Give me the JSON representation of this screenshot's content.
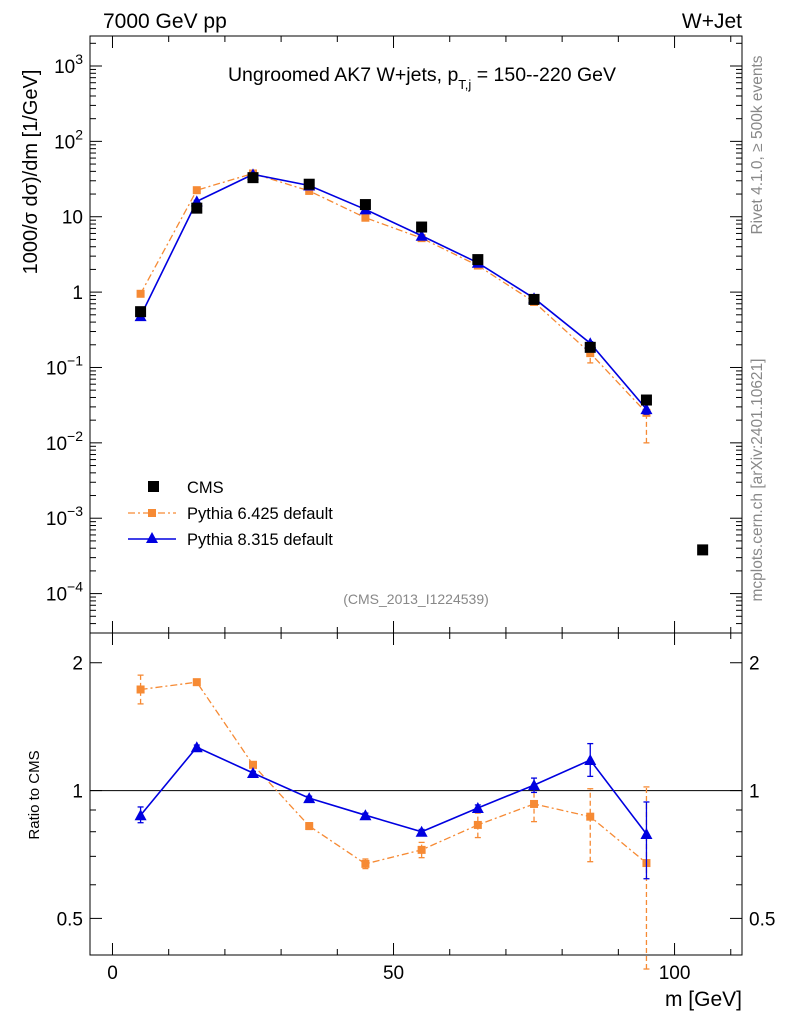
{
  "header": {
    "left": "7000 GeV pp",
    "right": "W+Jet"
  },
  "side_labels": {
    "rivet": "Rivet 4.1.0, ≥ 500k events",
    "mcplots": "mcplots.cern.ch [arXiv:2401.10621]"
  },
  "colors": {
    "cms": "#000000",
    "pythia6": "#f68a34",
    "pythia8": "#0000e0"
  },
  "chart_data": [
    {
      "type": "scatter",
      "panel": "main",
      "title_main": "Ungroomed AK7 W+jets, p",
      "title_sub": "T,j",
      "title_rest": " = 150--220 GeV",
      "ylabel": "1000/σ  dσ)/dm [1/GeV]",
      "yscale": "log",
      "ylim": [
        3e-05,
        2500
      ],
      "xlim": [
        -4,
        112
      ],
      "yticks": [
        {
          "value": 0.0001,
          "base": "10",
          "exp": "−4"
        },
        {
          "value": 0.001,
          "base": "10",
          "exp": "−3"
        },
        {
          "value": 0.01,
          "base": "10",
          "exp": "−2"
        },
        {
          "value": 0.1,
          "base": "10",
          "exp": "−1"
        },
        {
          "value": 1,
          "base": "1",
          "exp": ""
        },
        {
          "value": 10,
          "base": "10",
          "exp": ""
        },
        {
          "value": 100,
          "base": "10",
          "exp": "2"
        },
        {
          "value": 1000,
          "base": "10",
          "exp": "3"
        }
      ],
      "watermark": "(CMS_2013_I1224539)",
      "legend": [
        {
          "key": "cms",
          "label": "CMS"
        },
        {
          "key": "pythia6",
          "label": "Pythia 6.425 default"
        },
        {
          "key": "pythia8",
          "label": "Pythia 8.315 default"
        }
      ],
      "series": [
        {
          "key": "cms",
          "name": "CMS",
          "marker": "square",
          "x": [
            5,
            15,
            25,
            35,
            45,
            55,
            65,
            75,
            85,
            95,
            105
          ],
          "y": [
            0.55,
            13,
            33,
            27,
            14.5,
            7.3,
            2.7,
            0.8,
            0.185,
            0.037,
            0.00038
          ]
        },
        {
          "key": "pythia6",
          "name": "Pythia 6.425 default",
          "marker": "square-small",
          "line": "dashdot",
          "x": [
            5,
            15,
            25,
            35,
            45,
            55,
            65,
            75,
            85,
            95
          ],
          "y": [
            0.95,
            22.5,
            37.5,
            22,
            9.7,
            5.2,
            2.25,
            0.74,
            0.155,
            0.025
          ],
          "yerr_low": [
            0.9,
            22,
            37,
            21.5,
            9.5,
            5.0,
            2.1,
            0.68,
            0.115,
            0.01
          ],
          "yerr_high": [
            1.0,
            23,
            38,
            22.5,
            9.9,
            5.4,
            2.4,
            0.8,
            0.19,
            0.04
          ]
        },
        {
          "key": "pythia8",
          "name": "Pythia 8.315 default",
          "marker": "triangle",
          "line": "solid",
          "x": [
            5,
            15,
            25,
            35,
            45,
            55,
            65,
            75,
            85,
            95
          ],
          "y": [
            0.48,
            16,
            36.5,
            26,
            12.5,
            5.6,
            2.45,
            0.83,
            0.21,
            0.028
          ],
          "yerr_low": [
            0.46,
            15.5,
            36,
            25.5,
            12.2,
            5.5,
            2.4,
            0.8,
            0.2,
            0.024
          ],
          "yerr_high": [
            0.5,
            16.5,
            37,
            26.5,
            12.8,
            5.7,
            2.5,
            0.86,
            0.22,
            0.032
          ]
        }
      ]
    },
    {
      "type": "scatter",
      "panel": "ratio",
      "ylabel": "Ratio to CMS",
      "xlabel": "m [GeV]",
      "yscale": "log",
      "ylim": [
        0.41,
        2.35
      ],
      "xlim": [
        -4,
        112
      ],
      "yticks": [
        {
          "value": 0.5,
          "label": "0.5"
        },
        {
          "value": 1,
          "label": "1"
        },
        {
          "value": 2,
          "label": "2"
        }
      ],
      "xticks": [
        {
          "value": 0,
          "label": "0"
        },
        {
          "value": 50,
          "label": "50"
        },
        {
          "value": 100,
          "label": "100"
        }
      ],
      "reference": 1,
      "series": [
        {
          "key": "pythia6",
          "name": "Pythia 6.425 default",
          "marker": "square-small",
          "line": "dashdot",
          "x": [
            5,
            15,
            25,
            35,
            45,
            55,
            65,
            75,
            85,
            95
          ],
          "y": [
            1.73,
            1.8,
            1.15,
            0.825,
            0.672,
            0.725,
            0.83,
            0.93,
            0.868,
            0.675
          ],
          "yerr_low": [
            1.6,
            1.78,
            1.13,
            0.81,
            0.655,
            0.695,
            0.775,
            0.845,
            0.68,
            0.38
          ],
          "yerr_high": [
            1.87,
            1.82,
            1.17,
            0.84,
            0.69,
            0.755,
            0.885,
            1.01,
            1.01,
            1.02
          ]
        },
        {
          "key": "pythia8",
          "name": "Pythia 8.315 default",
          "marker": "triangle",
          "line": "solid",
          "x": [
            5,
            15,
            25,
            35,
            45,
            55,
            65,
            75,
            85,
            95
          ],
          "y": [
            0.875,
            1.265,
            1.1,
            0.96,
            0.875,
            0.8,
            0.91,
            1.03,
            1.18,
            0.79
          ],
          "yerr_low": [
            0.84,
            1.25,
            1.09,
            0.95,
            0.865,
            0.79,
            0.895,
            0.99,
            1.08,
            0.62
          ],
          "yerr_high": [
            0.915,
            1.28,
            1.11,
            0.97,
            0.885,
            0.81,
            0.925,
            1.07,
            1.29,
            0.94
          ]
        }
      ]
    }
  ]
}
